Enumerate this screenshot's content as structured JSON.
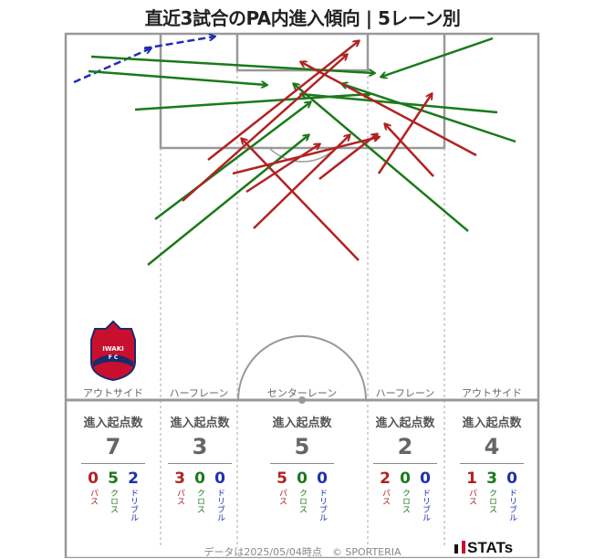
{
  "title": "直近3試合のPA内進入傾向 | 5レーン別",
  "colors": {
    "pass": "#b22222",
    "cross": "#1a7a1a",
    "dribble": "#1f2fb0",
    "line": "#888888"
  },
  "lanes": [
    {
      "name": "アウトサイド",
      "head": "進入起点数",
      "total": "7",
      "pass": "0",
      "cross": "5",
      "dribble": "2"
    },
    {
      "name": "ハーフレーン",
      "head": "進入起点数",
      "total": "3",
      "pass": "3",
      "cross": "0",
      "dribble": "0"
    },
    {
      "name": "センターレーン",
      "head": "進入起点数",
      "total": "5",
      "pass": "5",
      "cross": "0",
      "dribble": "0"
    },
    {
      "name": "ハーフレーン",
      "head": "進入起点数",
      "total": "2",
      "pass": "2",
      "cross": "0",
      "dribble": "0"
    },
    {
      "name": "アウトサイド",
      "head": "進入起点数",
      "total": "4",
      "pass": "1",
      "cross": "3",
      "dribble": "0"
    }
  ],
  "type_labels": {
    "pass": "パス",
    "cross": "クロス",
    "dribble": "ドリブル"
  },
  "footer": "データは2025/05/04時点　© SPORTERIA",
  "brand": "STATs",
  "club_crest": {
    "text": "IWAKI F.C",
    "icon": "club-crest-icon"
  },
  "entries": [
    {
      "type": "dribble",
      "from": [
        81,
        90
      ],
      "to": [
        165,
        53
      ]
    },
    {
      "type": "dribble",
      "from": [
        158,
        53
      ],
      "to": [
        235,
        40
      ]
    },
    {
      "type": "cross",
      "from": [
        100,
        62
      ],
      "to": [
        410,
        80
      ]
    },
    {
      "type": "cross",
      "from": [
        97,
        78
      ],
      "to": [
        292,
        93
      ]
    },
    {
      "type": "cross",
      "from": [
        540,
        42
      ],
      "to": [
        418,
        84
      ]
    },
    {
      "type": "cross",
      "from": [
        148,
        120
      ],
      "to": [
        405,
        103
      ]
    },
    {
      "type": "cross",
      "from": [
        170,
        240
      ],
      "to": [
        340,
        112
      ]
    },
    {
      "type": "cross",
      "from": [
        162,
        290
      ],
      "to": [
        338,
        148
      ]
    },
    {
      "type": "cross",
      "from": [
        565,
        155
      ],
      "to": [
        375,
        92
      ]
    },
    {
      "type": "cross",
      "from": [
        513,
        253
      ],
      "to": [
        322,
        92
      ]
    },
    {
      "type": "cross",
      "from": [
        545,
        123
      ],
      "to": [
        330,
        103
      ]
    },
    {
      "type": "pass",
      "from": [
        228,
        175
      ],
      "to": [
        393,
        45
      ]
    },
    {
      "type": "pass",
      "from": [
        200,
        220
      ],
      "to": [
        380,
        60
      ]
    },
    {
      "type": "pass",
      "from": [
        522,
        170
      ],
      "to": [
        330,
        68
      ]
    },
    {
      "type": "pass",
      "from": [
        393,
        285
      ],
      "to": [
        265,
        152
      ]
    },
    {
      "type": "pass",
      "from": [
        278,
        250
      ],
      "to": [
        383,
        148
      ]
    },
    {
      "type": "pass",
      "from": [
        255,
        190
      ],
      "to": [
        415,
        150
      ]
    },
    {
      "type": "pass",
      "from": [
        350,
        196
      ],
      "to": [
        413,
        147
      ]
    },
    {
      "type": "pass",
      "from": [
        415,
        190
      ],
      "to": [
        473,
        103
      ]
    },
    {
      "type": "pass",
      "from": [
        475,
        193
      ],
      "to": [
        422,
        136
      ]
    },
    {
      "type": "pass",
      "from": [
        270,
        210
      ],
      "to": [
        350,
        158
      ]
    }
  ]
}
